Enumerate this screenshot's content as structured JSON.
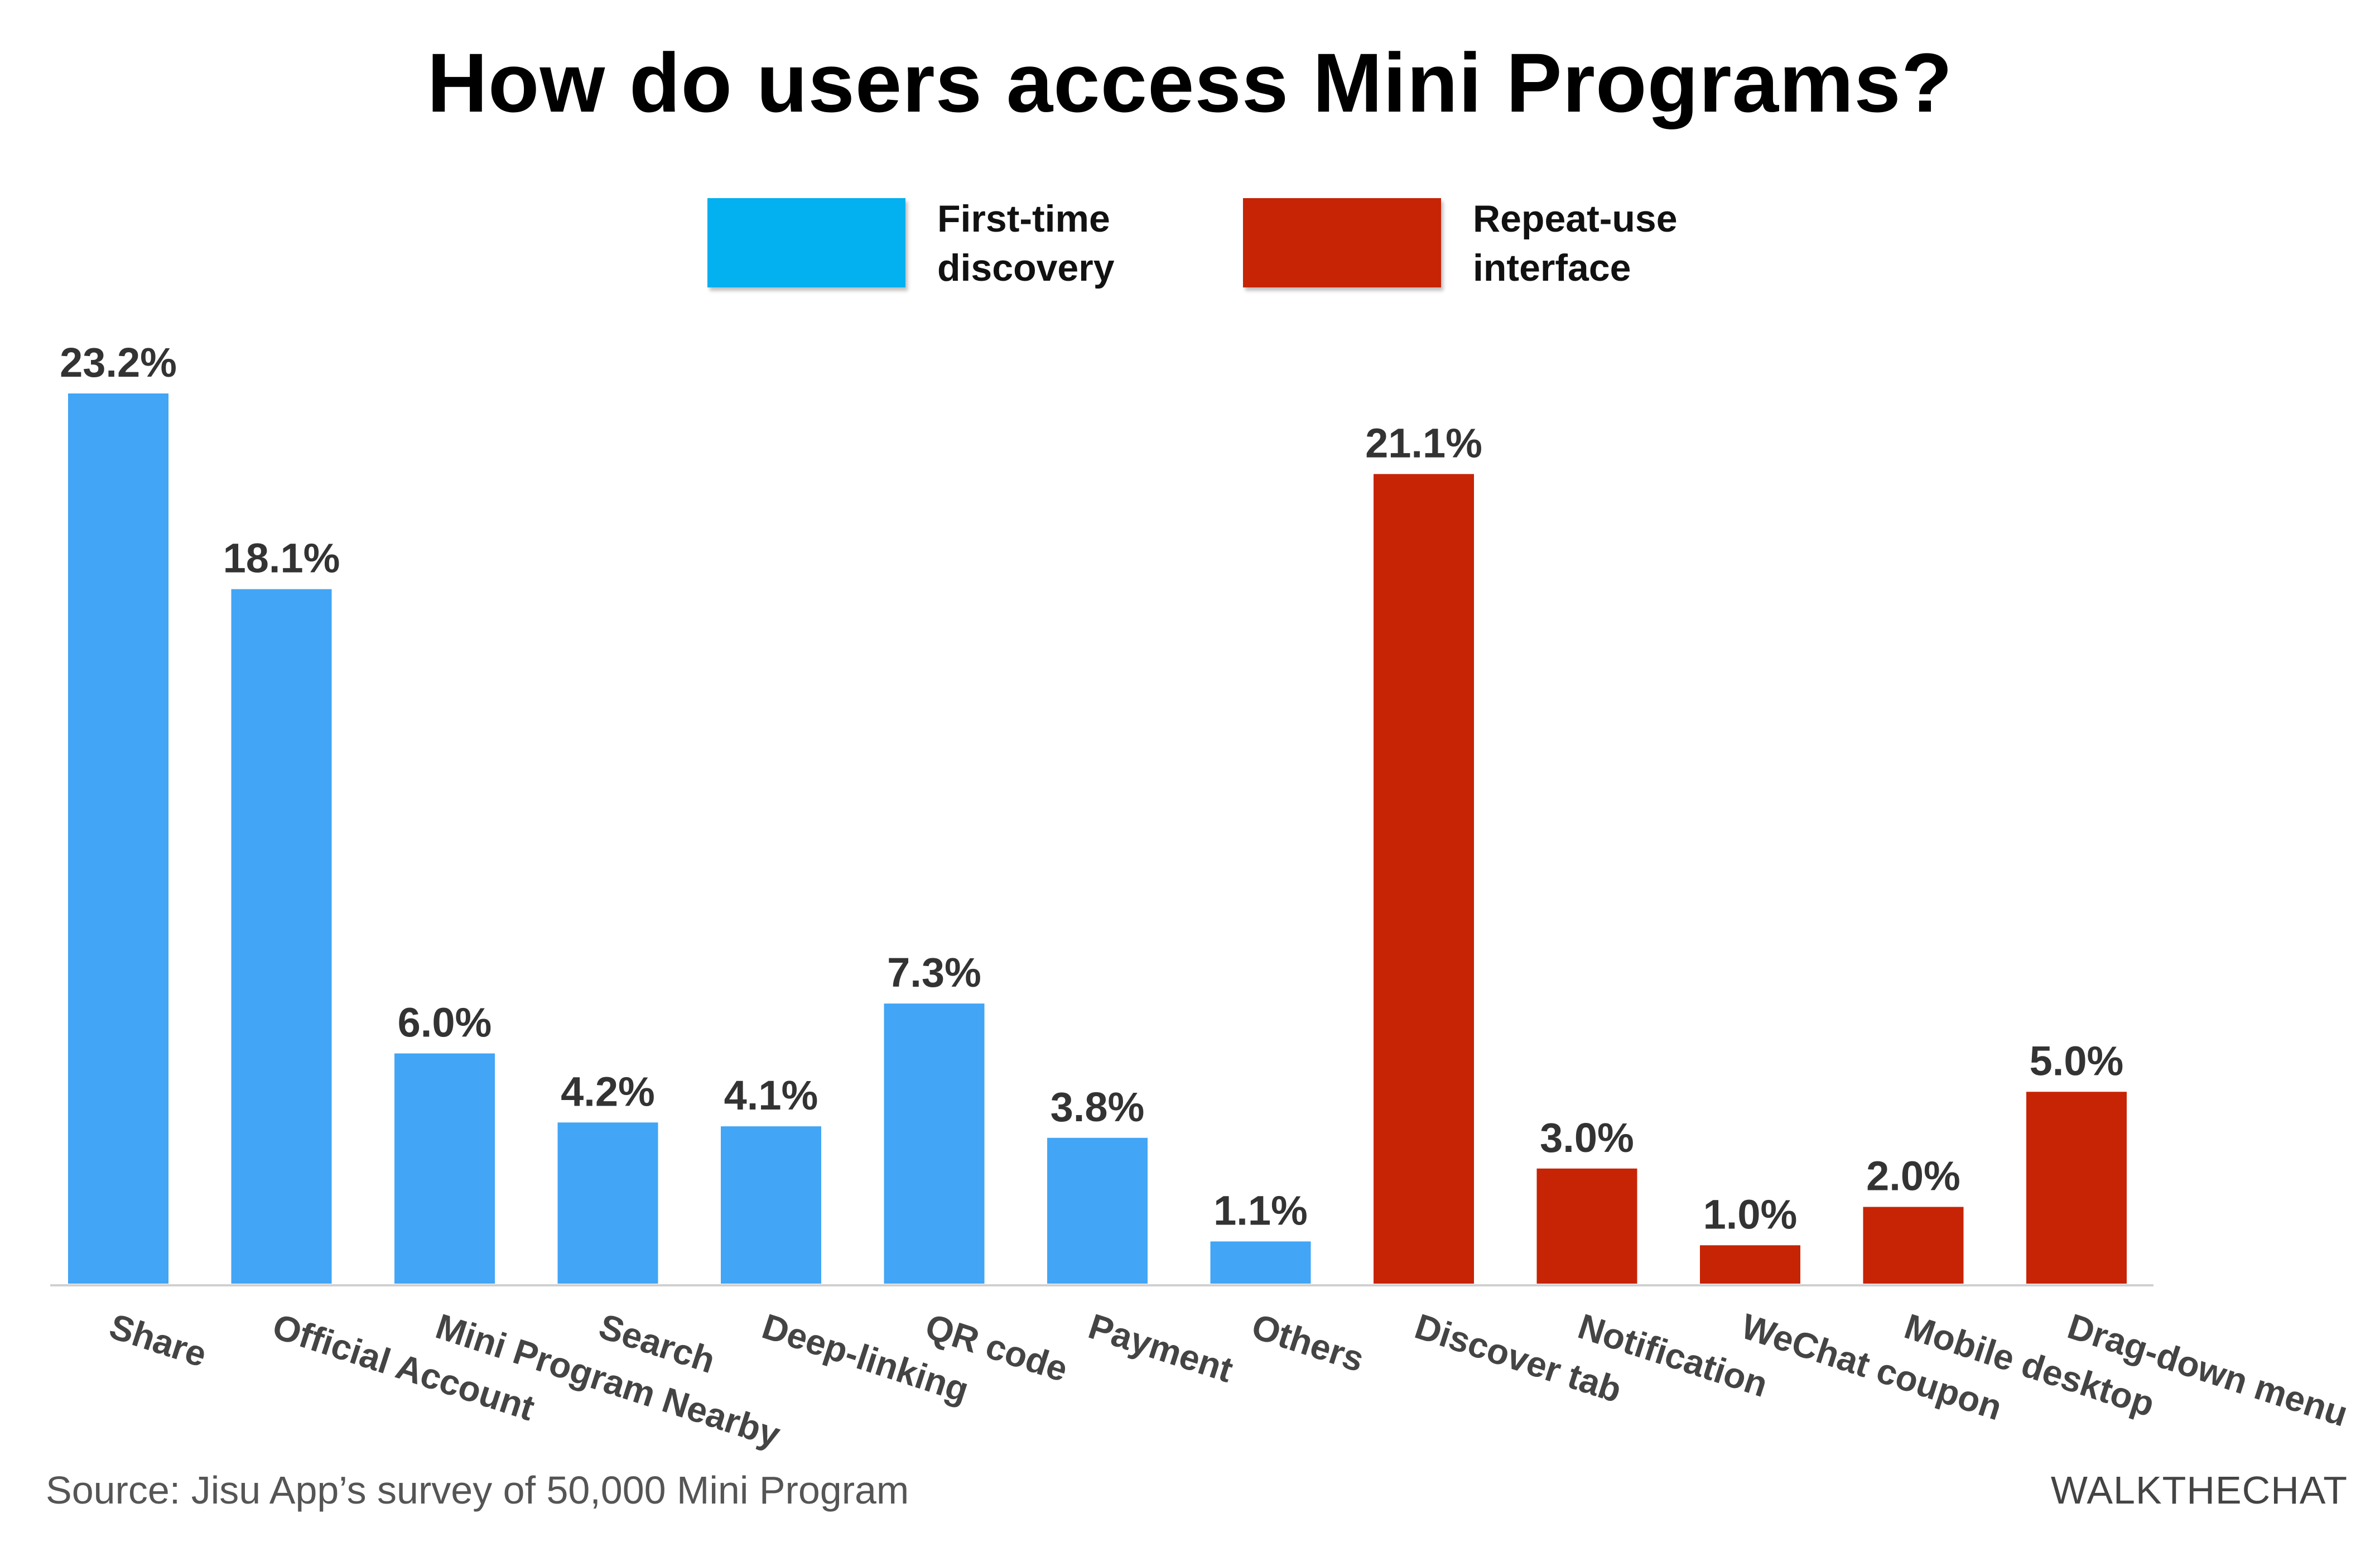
{
  "chart_data": {
    "type": "bar",
    "title": "How do users access Mini Programs?",
    "categories": [
      "Share",
      "Official Account",
      "Mini Program Nearby",
      "Search",
      "Deep-linking",
      "QR code",
      "Payment",
      "Others",
      "Discover tab",
      "Notification",
      "WeChat coupon",
      "Mobile desktop",
      "Drag-down menu"
    ],
    "values": [
      23.2,
      18.1,
      6.0,
      4.2,
      4.1,
      7.3,
      3.8,
      1.1,
      21.1,
      3.0,
      1.0,
      2.0,
      5.0
    ],
    "value_labels": [
      "23.2%",
      "18.1%",
      "6.0%",
      "4.2%",
      "4.1%",
      "7.3%",
      "3.8%",
      "1.1%",
      "21.1%",
      "3.0%",
      "1.0%",
      "2.0%",
      "5.0%"
    ],
    "groups": [
      "first",
      "first",
      "first",
      "first",
      "first",
      "first",
      "first",
      "first",
      "repeat",
      "repeat",
      "repeat",
      "repeat",
      "repeat"
    ],
    "series": [
      {
        "key": "first",
        "name": "First-time discovery",
        "color": "#42a5f5"
      },
      {
        "key": "repeat",
        "name": "Repeat-use interface",
        "color": "#c62405"
      }
    ],
    "legend_colors": {
      "first": "#03b0f0",
      "repeat": "#c62405"
    },
    "xlabel": "",
    "ylabel": "",
    "ylim": [
      0,
      25
    ],
    "grid": false,
    "legend_position": "top-center"
  },
  "footer": {
    "source": "Source: Jisu App’s survey of 50,000 Mini Program",
    "brand": "WALKTHECHAT"
  }
}
